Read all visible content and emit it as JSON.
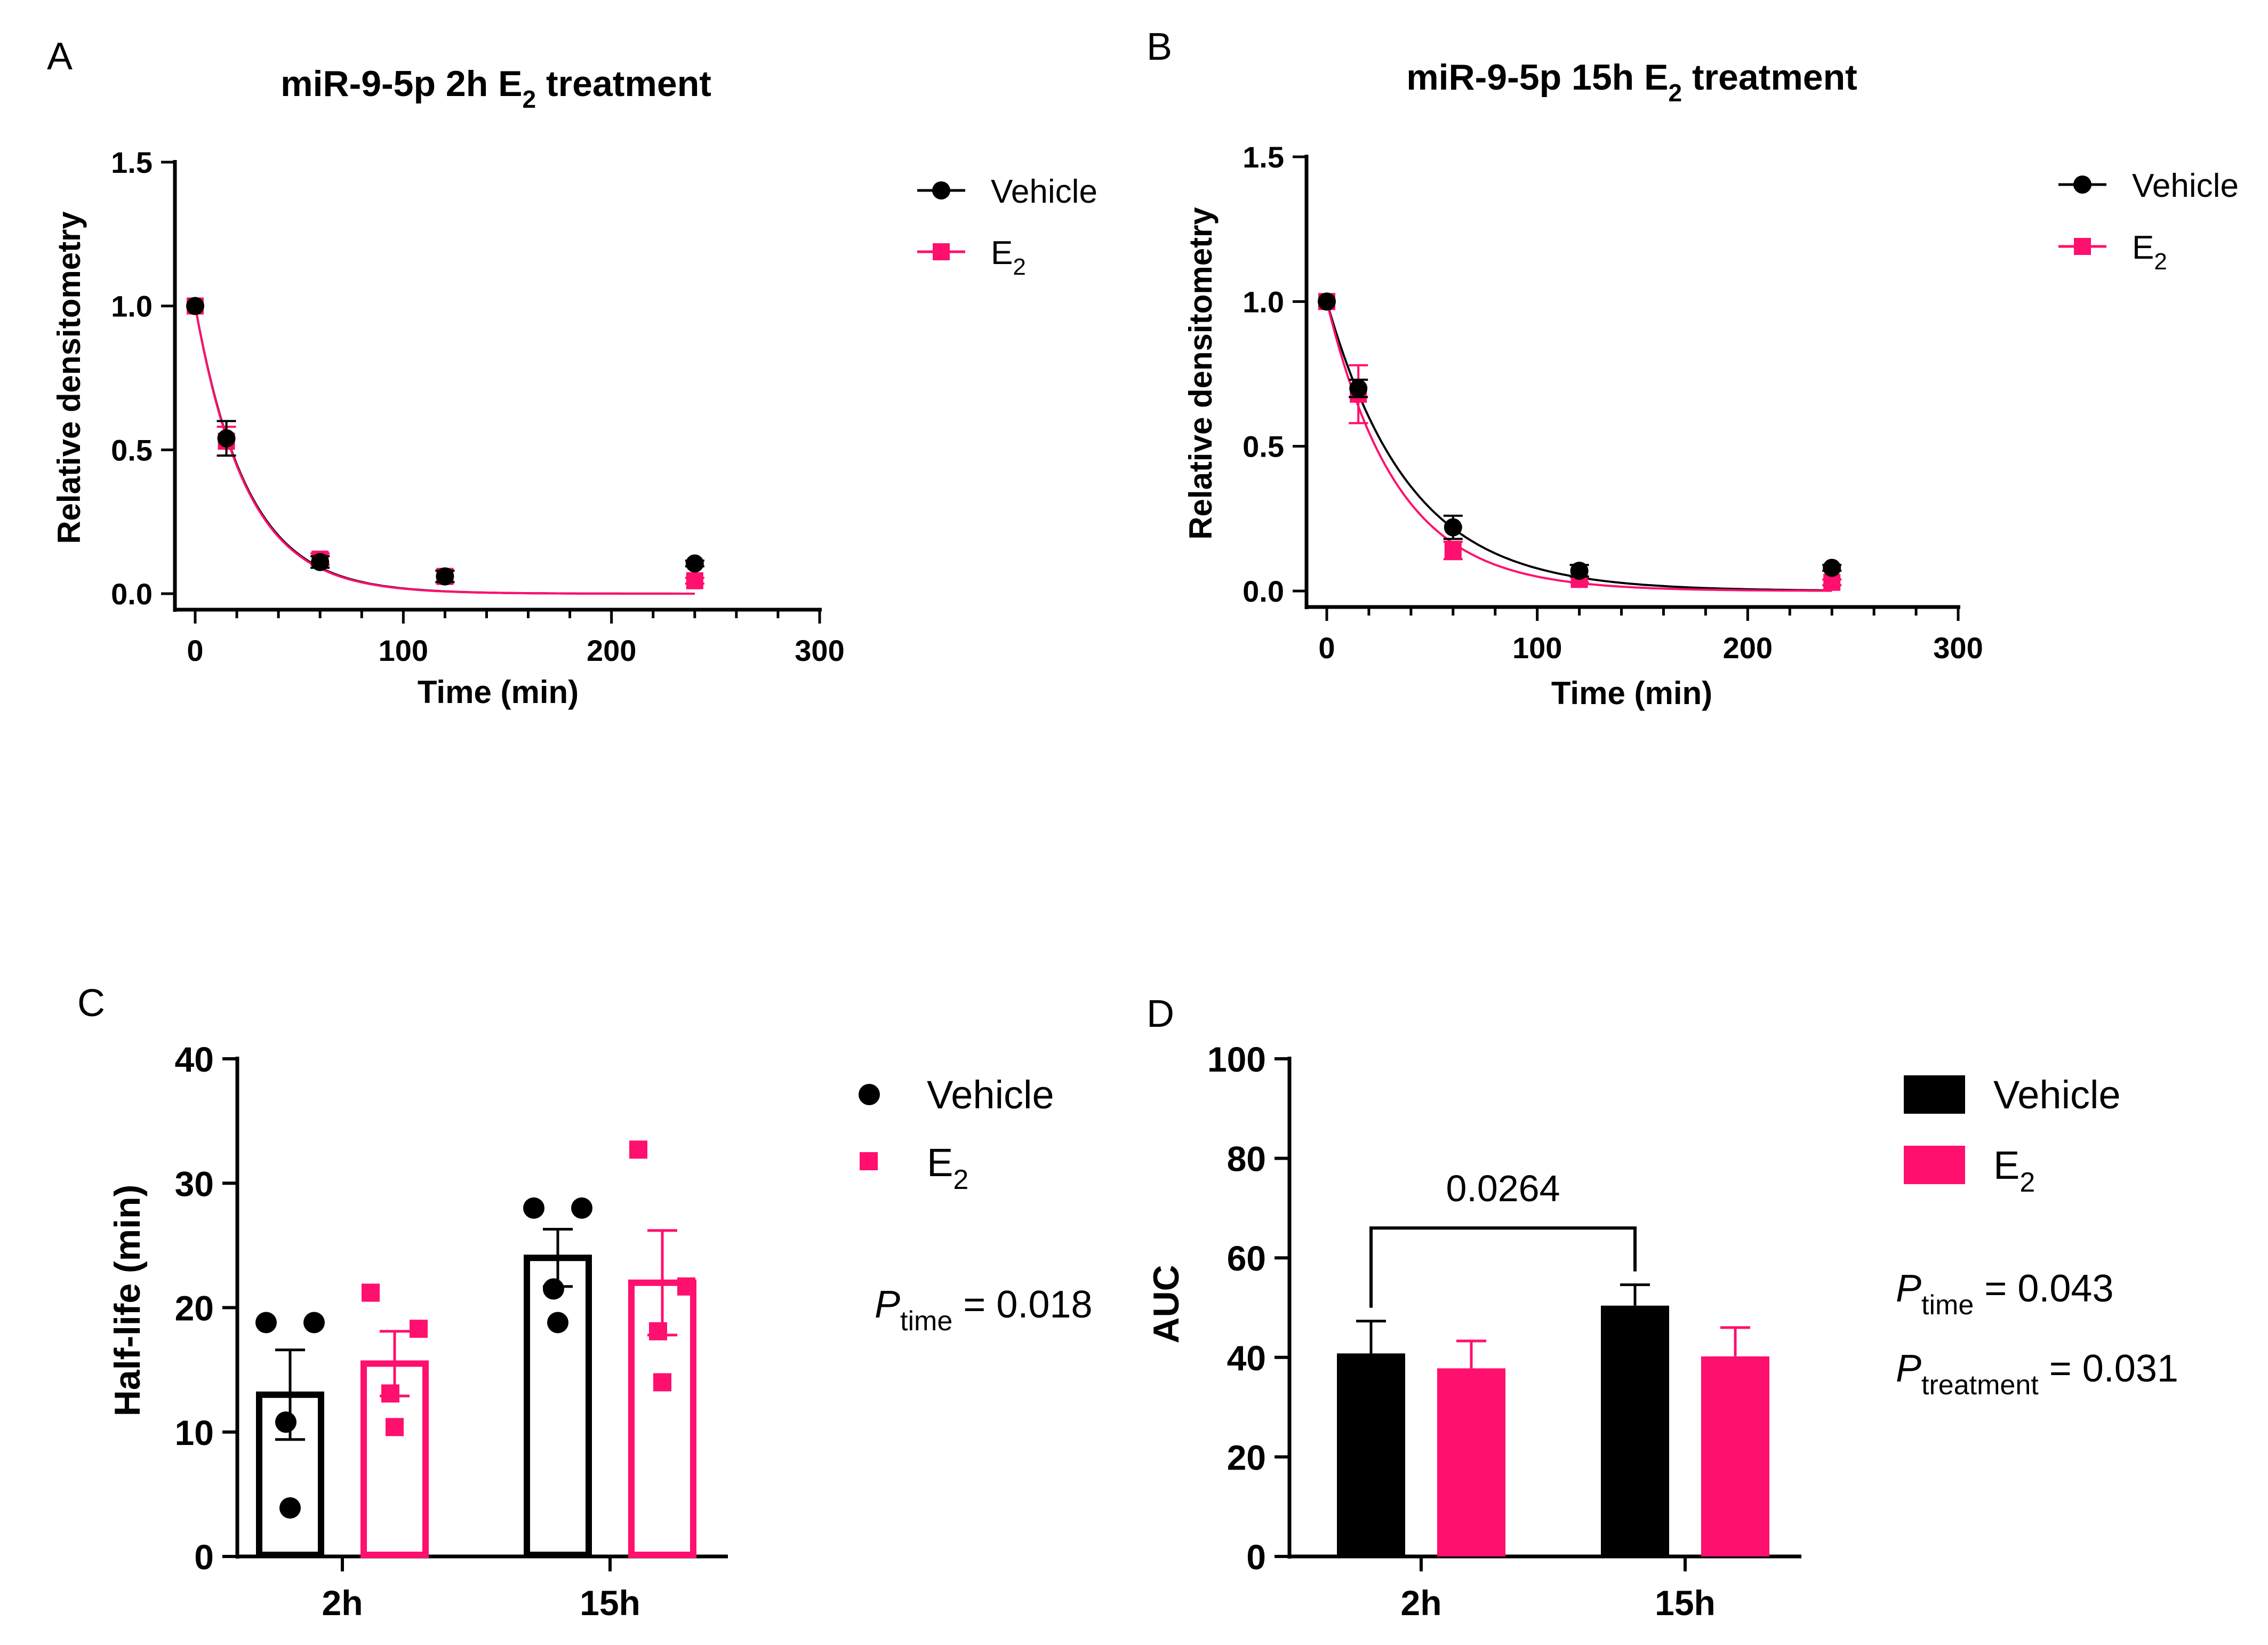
{
  "colors": {
    "vehicle": "#000000",
    "e2": "#FF0F6E"
  },
  "chart_data": [
    {
      "panel": "A",
      "type": "scatter",
      "title_prefix": "miR-9-5p 2h E",
      "title_sub": "2",
      "title_suffix": " treatment",
      "xlabel": "Time (min)",
      "ylabel": "Relative densitometry",
      "xlim": [
        0,
        300
      ],
      "ylim": [
        0,
        1.5
      ],
      "x_ticks": [
        0,
        100,
        200,
        300
      ],
      "x_tick_labels": [
        "0",
        "100",
        "200",
        "300"
      ],
      "y_ticks": [
        0,
        0.5,
        1.0,
        1.5
      ],
      "y_tick_labels": [
        "0.0",
        "0.5",
        "1.0",
        "1.5"
      ],
      "legend": [
        {
          "label": "Vehicle",
          "sub": ""
        },
        {
          "label": "E",
          "sub": "2"
        }
      ],
      "series": [
        {
          "name": "Vehicle",
          "x": [
            0,
            15,
            60,
            120,
            240
          ],
          "y": [
            1.0,
            0.54,
            0.11,
            0.06,
            0.105
          ],
          "err": [
            0,
            0.06,
            0.02,
            0.02,
            0.01
          ],
          "fit_k": 0.04
        },
        {
          "name": "E2",
          "x": [
            0,
            15,
            60,
            120,
            240
          ],
          "y": [
            1.0,
            0.53,
            0.12,
            0.06,
            0.045
          ],
          "err": [
            0,
            0.05,
            0.02,
            0.02,
            0.01
          ],
          "fit_k": 0.0405
        }
      ]
    },
    {
      "panel": "B",
      "type": "scatter",
      "title_prefix": "miR-9-5p 15h E",
      "title_sub": "2",
      "title_suffix": " treatment",
      "xlabel": "Time (min)",
      "ylabel": "Relative densitometry",
      "xlim": [
        0,
        300
      ],
      "ylim": [
        0,
        1.5
      ],
      "x_ticks": [
        0,
        100,
        200,
        300
      ],
      "x_tick_labels": [
        "0",
        "100",
        "200",
        "300"
      ],
      "y_ticks": [
        0,
        0.5,
        1.0,
        1.5
      ],
      "y_tick_labels": [
        "0.0",
        "0.5",
        "1.0",
        "1.5"
      ],
      "legend": [
        {
          "label": "Vehicle",
          "sub": ""
        },
        {
          "label": "E",
          "sub": "2"
        }
      ],
      "series": [
        {
          "name": "Vehicle",
          "x": [
            0,
            15,
            60,
            120,
            240
          ],
          "y": [
            1.0,
            0.7,
            0.22,
            0.07,
            0.08
          ],
          "err": [
            0,
            0.03,
            0.04,
            0.02,
            0.01
          ],
          "fit_k": 0.0255
        },
        {
          "name": "E2",
          "x": [
            0,
            15,
            60,
            120,
            240
          ],
          "y": [
            1.0,
            0.68,
            0.14,
            0.04,
            0.03
          ],
          "err": [
            0,
            0.1,
            0.03,
            0.01,
            0.01
          ],
          "fit_k": 0.03
        }
      ]
    },
    {
      "panel": "C",
      "type": "bar",
      "ylabel": "Half-life (min)",
      "categories": [
        "2h",
        "15h"
      ],
      "ylim": [
        0,
        40
      ],
      "y_ticks": [
        0,
        10,
        20,
        30,
        40
      ],
      "y_tick_labels": [
        "0",
        "10",
        "20",
        "30",
        "40"
      ],
      "legend": [
        {
          "label": "Vehicle",
          "sub": ""
        },
        {
          "label": "E",
          "sub": "2"
        }
      ],
      "series": [
        {
          "name": "Vehicle",
          "values": [
            13,
            24
          ],
          "err": [
            3.6,
            2.3
          ],
          "points": [
            [
              18.8,
              18.8,
              10.8,
              3.9
            ],
            [
              28,
              28,
              21.5,
              18.8
            ]
          ]
        },
        {
          "name": "E2",
          "values": [
            15.5,
            22
          ],
          "err": [
            2.6,
            4.2
          ],
          "points": [
            [
              21.2,
              18.3,
              13.1,
              10.4
            ],
            [
              32.7,
              21.7,
              18.1,
              14
            ]
          ]
        }
      ],
      "stats": [
        {
          "p": "P",
          "sub": "time",
          "value": " = 0.018"
        }
      ]
    },
    {
      "panel": "D",
      "type": "bar",
      "ylabel": "AUC",
      "categories": [
        "2h",
        "15h"
      ],
      "ylim": [
        0,
        100
      ],
      "y_ticks": [
        0,
        20,
        40,
        60,
        80,
        100
      ],
      "y_tick_labels": [
        "0",
        "20",
        "40",
        "60",
        "80",
        "100"
      ],
      "legend": [
        {
          "label": "Vehicle",
          "sub": ""
        },
        {
          "label": "E",
          "sub": "2"
        }
      ],
      "series": [
        {
          "name": "Vehicle",
          "values": [
            40.8,
            50.4
          ],
          "err": [
            6.5,
            4.2
          ]
        },
        {
          "name": "E2",
          "values": [
            37.8,
            40.2
          ],
          "err": [
            5.5,
            5.8
          ]
        }
      ],
      "comparison": {
        "label": "0.0264",
        "level": 66,
        "from": "2h Vehicle",
        "to": "15h Vehicle"
      },
      "stats": [
        {
          "p": "P",
          "sub": "time",
          "value": " = 0.043"
        },
        {
          "p": "P",
          "sub": "treatment",
          "value": " = 0.031"
        }
      ]
    }
  ]
}
